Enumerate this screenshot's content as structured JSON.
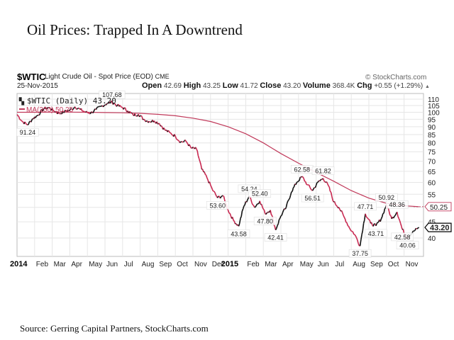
{
  "page": {
    "title": "Oil Prices: Trapped In A Downtrend",
    "source": "Source: Gerring Capital Partners, StockCharts.com"
  },
  "header": {
    "symbol": "$WTIC",
    "name": "Light Crude Oil - Spot Price (EOD)",
    "exchange": "CME",
    "date": "25-Nov-2015",
    "brand": "© StockCharts.com",
    "open_label": "Open",
    "open": "42.69",
    "high_label": "High",
    "high": "43.25",
    "low_label": "Low",
    "low": "41.72",
    "close_label": "Close",
    "close": "43.20",
    "volume_label": "Volume",
    "volume": "368.4K",
    "chg_label": "Chg",
    "chg": "+0.55 (+1.29%)",
    "chg_arrow": "▲"
  },
  "chart_data": {
    "type": "line",
    "title": "$WTIC Light Crude Oil - Spot Price (EOD)",
    "legend": [
      {
        "name": "$WTIC (Daily) 43.20",
        "color": "#000000"
      },
      {
        "name": "MA(200) 50.25",
        "color": "#c0395a"
      }
    ],
    "legend_position": "top-left",
    "yscale": "log",
    "ylim": [
      37,
      112
    ],
    "y_ticks": [
      40,
      45,
      50,
      55,
      60,
      65,
      70,
      75,
      80,
      85,
      90,
      95,
      100,
      105,
      110
    ],
    "x_tick_labels": [
      "2014",
      "Feb",
      "Mar",
      "Apr",
      "May",
      "Jun",
      "Jul",
      "Aug",
      "Sep",
      "Oct",
      "Nov",
      "Dec",
      "2015",
      "Feb",
      "Mar",
      "Apr",
      "May",
      "Jun",
      "Jul",
      "Aug",
      "Sep",
      "Oct",
      "Nov"
    ],
    "x_bold_labels": [
      "2014",
      "2015"
    ],
    "x_range_months": [
      0,
      22.85
    ],
    "grid": true,
    "series": [
      {
        "name": "$WTIC (Daily)",
        "x_months": [
          0,
          0.3,
          0.6,
          0.9,
          1.2,
          1.5,
          1.8,
          2.1,
          2.4,
          2.7,
          3.0,
          3.3,
          3.6,
          3.9,
          4.2,
          4.5,
          4.8,
          5.1,
          5.4,
          5.7,
          6.0,
          6.3,
          6.6,
          6.9,
          7.2,
          7.5,
          7.8,
          8.1,
          8.4,
          8.7,
          9.0,
          9.3,
          9.6,
          9.9,
          10.2,
          10.5,
          10.8,
          11.1,
          11.4,
          11.7,
          12.0,
          12.3,
          12.6,
          12.9,
          13.2,
          13.5,
          13.8,
          14.1,
          14.4,
          14.7,
          15.0,
          15.3,
          15.6,
          15.9,
          16.2,
          16.5,
          16.8,
          17.1,
          17.4,
          17.7,
          18.0,
          18.3,
          18.6,
          18.9,
          19.2,
          19.5,
          19.8,
          20.1,
          20.4,
          20.7,
          21.0,
          21.3,
          21.6,
          21.9,
          22.2,
          22.5,
          22.85
        ],
        "values": [
          98.4,
          93.5,
          91.24,
          95.5,
          98.0,
          102.5,
          103.5,
          101.0,
          99.0,
          100.5,
          101.5,
          104.0,
          102.0,
          100.0,
          99.5,
          102.0,
          104.5,
          106.5,
          107.68,
          105.0,
          103.5,
          101.0,
          98.0,
          98.5,
          95.0,
          93.5,
          94.0,
          92.0,
          88.0,
          86.0,
          84.0,
          80.5,
          81.0,
          77.0,
          76.5,
          66.0,
          62.0,
          57.0,
          53.6,
          54.5,
          49.0,
          45.5,
          43.58,
          50.5,
          54.24,
          50.0,
          52.4,
          47.8,
          49.0,
          42.41,
          47.0,
          50.0,
          56.0,
          60.0,
          62.58,
          59.0,
          56.51,
          60.0,
          61.82,
          58.5,
          52.0,
          50.0,
          46.5,
          43.0,
          41.0,
          37.75,
          47.71,
          44.5,
          43.71,
          46.0,
          50.92,
          46.0,
          48.36,
          42.58,
          40.06,
          42.0,
          43.2
        ]
      },
      {
        "name": "MA(200)",
        "x_months": [
          0,
          1,
          2,
          3,
          4,
          5,
          6,
          7,
          8,
          9,
          10,
          11,
          12,
          13,
          14,
          15,
          16,
          17,
          18,
          19,
          20,
          21,
          22,
          22.85
        ],
        "values": [
          100.0,
          100.0,
          100.1,
          100.1,
          100.0,
          99.8,
          99.6,
          99.2,
          98.5,
          97.5,
          95.8,
          93.5,
          90.0,
          85.5,
          80.0,
          74.0,
          69.0,
          64.5,
          60.5,
          56.5,
          53.5,
          51.5,
          50.6,
          50.25
        ]
      }
    ],
    "annotations": [
      {
        "label": "91.24",
        "x_month": 0.6,
        "value": 91.24,
        "pos": "below"
      },
      {
        "label": "107.68",
        "x_month": 5.4,
        "value": 107.68,
        "pos": "above"
      },
      {
        "label": "53.60",
        "x_month": 11.4,
        "value": 53.6,
        "pos": "below"
      },
      {
        "label": "43.58",
        "x_month": 12.6,
        "value": 43.58,
        "pos": "below"
      },
      {
        "label": "54.24",
        "x_month": 13.2,
        "value": 54.24,
        "pos": "above"
      },
      {
        "label": "52.40",
        "x_month": 13.8,
        "value": 52.4,
        "pos": "above"
      },
      {
        "label": "47.80",
        "x_month": 14.1,
        "value": 47.8,
        "pos": "below"
      },
      {
        "label": "42.41",
        "x_month": 14.7,
        "value": 42.41,
        "pos": "below"
      },
      {
        "label": "62.58",
        "x_month": 16.2,
        "value": 62.58,
        "pos": "above"
      },
      {
        "label": "56.51",
        "x_month": 16.8,
        "value": 56.51,
        "pos": "below"
      },
      {
        "label": "61.82",
        "x_month": 17.4,
        "value": 61.82,
        "pos": "above"
      },
      {
        "label": "37.75",
        "x_month": 19.5,
        "value": 37.75,
        "pos": "below"
      },
      {
        "label": "47.71",
        "x_month": 19.8,
        "value": 47.71,
        "pos": "above"
      },
      {
        "label": "43.71",
        "x_month": 20.4,
        "value": 43.71,
        "pos": "below"
      },
      {
        "label": "50.92",
        "x_month": 21.0,
        "value": 50.92,
        "pos": "above"
      },
      {
        "label": "48.36",
        "x_month": 21.6,
        "value": 48.36,
        "pos": "above"
      },
      {
        "label": "42.58",
        "x_month": 21.9,
        "value": 42.58,
        "pos": "below"
      },
      {
        "label": "40.06",
        "x_month": 22.2,
        "value": 40.06,
        "pos": "below"
      }
    ],
    "last_value_tags": [
      {
        "label": "50.25",
        "value": 50.25,
        "color": "#c0395a"
      },
      {
        "label": "43.20",
        "value": 43.2,
        "color": "#000000"
      }
    ]
  }
}
